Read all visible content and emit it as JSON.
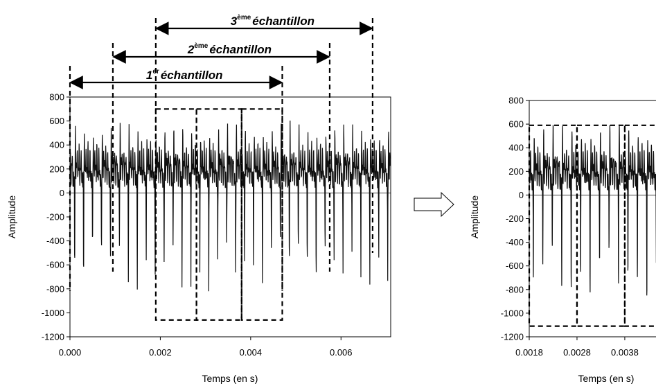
{
  "chart_data": [
    {
      "type": "line",
      "xlabel": "Temps (en s)",
      "ylabel": "Amplitude",
      "xlim": [
        0.0,
        0.0071
      ],
      "ylim": [
        -1200,
        800
      ],
      "xticks": [
        "0.000",
        "0.002",
        "0.004",
        "0.006"
      ],
      "xtick_values": [
        0.0,
        0.002,
        0.004,
        0.006
      ],
      "yticks": [
        "800",
        "600",
        "400",
        "200",
        "0",
        "-200",
        "-400",
        "-600",
        "-800",
        "-1000",
        "-1200"
      ],
      "ytick_values": [
        800,
        600,
        400,
        200,
        0,
        -200,
        -400,
        -600,
        -800,
        -1000,
        -1200
      ],
      "grid": false,
      "series_note": "",
      "pulse_period": 0.000198,
      "pulse_offset": 9e-05,
      "windows": [
        {
          "number": "1",
          "sup": "er",
          "word": "échantillon",
          "start": 0.0,
          "end": 0.0047
        },
        {
          "number": "2",
          "sup": "ème",
          "word": "échantillon",
          "start": 0.00095,
          "end": 0.00575
        },
        {
          "number": "3",
          "sup": "ème",
          "word": "échantillon",
          "start": 0.0019,
          "end": 0.0067
        }
      ],
      "boxes": [
        {
          "x0": 0.0019,
          "x1": 0.0028,
          "y0": -1060,
          "y1": 700
        },
        {
          "x0": 0.0028,
          "x1": 0.0038,
          "y0": -1060,
          "y1": 700
        },
        {
          "x0": 0.0038,
          "x1": 0.0047,
          "y0": -1060,
          "y1": 700
        }
      ]
    },
    {
      "type": "line",
      "xlabel": "Temps (en s)",
      "ylabel": "Amplitude",
      "xlim": [
        0.0018,
        0.0047
      ],
      "ylim": [
        -1200,
        800
      ],
      "xticks": [
        "0.0018",
        "0.0028",
        "0.0038"
      ],
      "xtick_values": [
        0.0018,
        0.0028,
        0.0038
      ],
      "yticks": [
        "800",
        "600",
        "400",
        "200",
        "0",
        "-200",
        "-400",
        "-600",
        "-800",
        "-1000",
        "-1200"
      ],
      "ytick_values": [
        800,
        600,
        400,
        200,
        0,
        -200,
        -400,
        -600,
        -800,
        -1000,
        -1200
      ],
      "grid": false,
      "boxes": [
        {
          "x0": 0.0018,
          "x1": 0.0028,
          "y0": -1110,
          "y1": 590
        },
        {
          "x0": 0.0028,
          "x1": 0.0038,
          "y0": -1110,
          "y1": 590
        },
        {
          "x0": 0.0038,
          "x1": 0.0047,
          "y0": -1110,
          "y1": 590
        }
      ]
    }
  ],
  "transition_arrow": "arrow-right-icon"
}
